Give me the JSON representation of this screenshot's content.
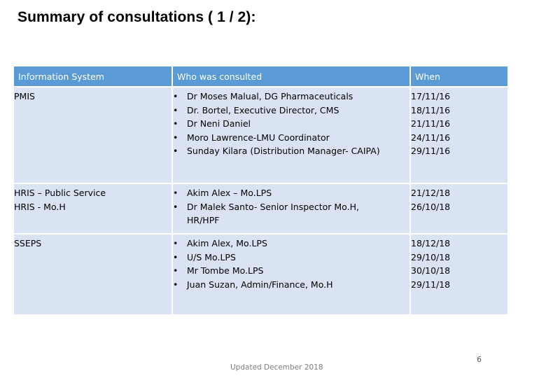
{
  "title": "Summary of consultations ( 1 / 2):",
  "table": {
    "headers": [
      "Information System",
      "Who was consulted",
      "When"
    ],
    "rows": [
      {
        "system": [
          "PMIS"
        ],
        "who": [
          "Dr Moses Malual, DG Pharmaceuticals",
          "Dr. Bortel, Executive Director, CMS",
          "Dr Neni Daniel",
          "Moro Lawrence-LMU Coordinator",
          "Sunday Kilara (Distribution Manager- CAIPA)"
        ],
        "when": [
          "17/11/16",
          "18/11/16",
          "21/11/16",
          "24/11/16",
          "29/11/16"
        ]
      },
      {
        "system": [
          "HRIS – Public Service",
          "HRIS - Mo.H"
        ],
        "who": [
          "Akim Alex – Mo.LPS",
          "Dr Malek Santo- Senior Inspector Mo.H, HR/HPF"
        ],
        "when": [
          "21/12/18",
          "26/10/18"
        ]
      },
      {
        "system": [
          "SSEPS"
        ],
        "who": [
          "Akim Alex, Mo.LPS",
          "U/S Mo.LPS",
          "Mr Tombe Mo.LPS",
          "Juan Suzan, Admin/Finance, Mo.H"
        ],
        "when": [
          "18/12/18",
          "29/10/18",
          "30/10/18",
          "29/11/18"
        ]
      }
    ]
  },
  "footer": "Updated December 2018",
  "page_number": "6",
  "colors": {
    "header_bg": "#5b9bd5",
    "cell_bg": "#dae3f3"
  }
}
